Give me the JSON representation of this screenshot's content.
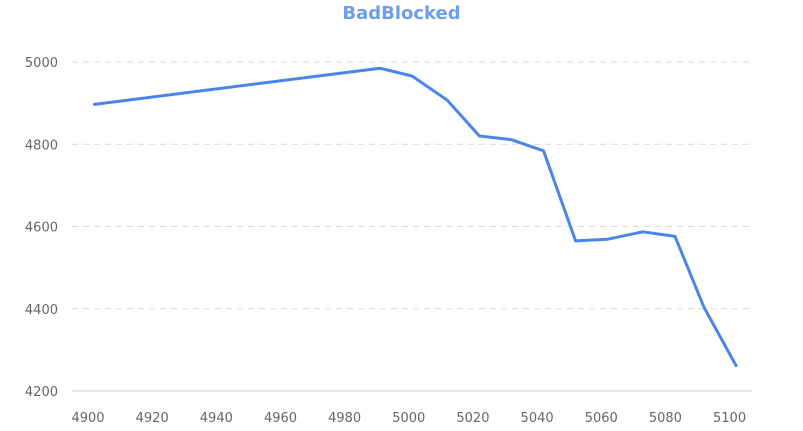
{
  "chart_data": {
    "type": "line",
    "title": "BadBlocked",
    "xlabel": "",
    "ylabel": "",
    "xlim": [
      4895,
      5107
    ],
    "ylim": [
      4200,
      5000
    ],
    "x_ticks": [
      4900,
      4920,
      4940,
      4960,
      4980,
      5000,
      5020,
      5040,
      5060,
      5080,
      5100
    ],
    "y_ticks": [
      4200,
      4400,
      4600,
      4800,
      5000
    ],
    "grid": true,
    "legend": "none",
    "series": [
      {
        "color": "#4A86E8",
        "points": [
          [
            4902,
            4897
          ],
          [
            4991,
            4985
          ],
          [
            5001,
            4966
          ],
          [
            5012,
            4907
          ],
          [
            5022,
            4820
          ],
          [
            5032,
            4811
          ],
          [
            5042,
            4784
          ],
          [
            5052,
            4565
          ],
          [
            5062,
            4569
          ],
          [
            5073,
            4587
          ],
          [
            5083,
            4576
          ],
          [
            5092,
            4404
          ],
          [
            5102,
            4262
          ]
        ]
      }
    ],
    "title_color": "#6D9EEB",
    "grid_color": "#d9d9d9",
    "axis_color": "#cccccc"
  }
}
